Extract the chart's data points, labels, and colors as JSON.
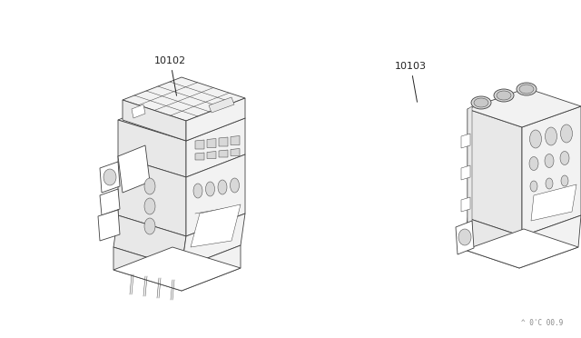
{
  "bg_color": "#ffffff",
  "line_color": "#404040",
  "label_color": "#222222",
  "fig_width": 6.4,
  "fig_height": 3.72,
  "dpi": 100,
  "part1_label": "10102",
  "part2_label": "10103",
  "watermark": "^ 0'C 00.9",
  "lw": 0.6,
  "lw_thin": 0.35,
  "face_color": "#ffffff",
  "shade_light": "#f2f2f2",
  "shade_mid": "#e8e8e8",
  "shade_dark": "#d8d8d8"
}
